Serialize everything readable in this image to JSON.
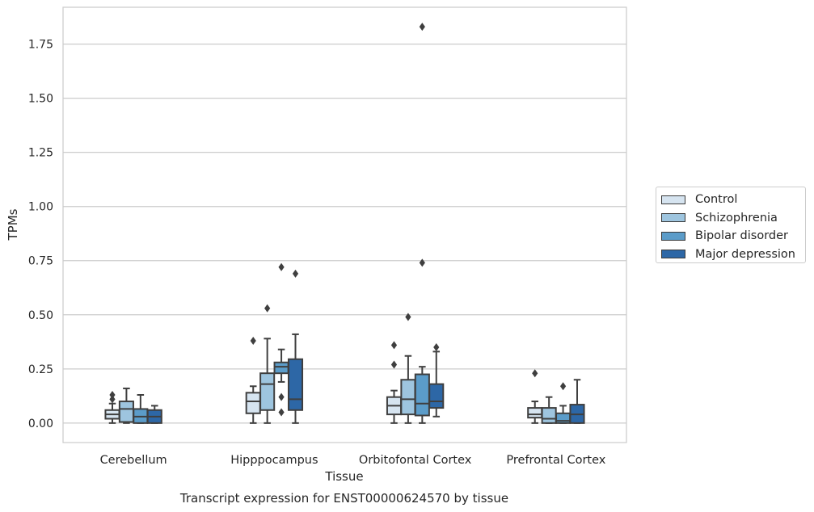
{
  "chart_data": {
    "type": "box",
    "ylabel": "TPMs",
    "xlabel": "Tissue",
    "caption": "Transcript expression for ENST00000624570 by tissue",
    "categories": [
      "Cerebellum",
      "Hipppocampus",
      "Orbitofontal Cortex",
      "Prefrontal Cortex"
    ],
    "yticks": [
      "0.00",
      "0.25",
      "0.50",
      "0.75",
      "1.00",
      "1.25",
      "1.50",
      "1.75"
    ],
    "ylim": [
      -0.09,
      1.92
    ],
    "grid": true,
    "legend_position": "right",
    "series": [
      {
        "name": "Control",
        "color": "#d6e4f0",
        "boxes": [
          {
            "q1": 0.02,
            "median": 0.04,
            "q3": 0.06,
            "whisker_low": 0.0,
            "whisker_high": 0.09,
            "outliers": [
              0.11,
              0.13
            ]
          },
          {
            "q1": 0.045,
            "median": 0.1,
            "q3": 0.14,
            "whisker_low": 0.0,
            "whisker_high": 0.17,
            "outliers": [
              0.38
            ]
          },
          {
            "q1": 0.04,
            "median": 0.08,
            "q3": 0.12,
            "whisker_low": 0.0,
            "whisker_high": 0.15,
            "outliers": [
              0.27,
              0.36
            ]
          },
          {
            "q1": 0.025,
            "median": 0.04,
            "q3": 0.07,
            "whisker_low": 0.0,
            "whisker_high": 0.1,
            "outliers": [
              0.23
            ]
          }
        ]
      },
      {
        "name": "Schizophrenia",
        "color": "#9ec5df",
        "boxes": [
          {
            "q1": 0.005,
            "median": 0.065,
            "q3": 0.1,
            "whisker_low": 0.0,
            "whisker_high": 0.16,
            "outliers": []
          },
          {
            "q1": 0.06,
            "median": 0.18,
            "q3": 0.23,
            "whisker_low": 0.0,
            "whisker_high": 0.39,
            "outliers": [
              0.53
            ]
          },
          {
            "q1": 0.04,
            "median": 0.11,
            "q3": 0.2,
            "whisker_low": 0.0,
            "whisker_high": 0.31,
            "outliers": [
              0.49
            ]
          },
          {
            "q1": 0.0,
            "median": 0.02,
            "q3": 0.07,
            "whisker_low": 0.0,
            "whisker_high": 0.12,
            "outliers": []
          }
        ]
      },
      {
        "name": "Bipolar disorder",
        "color": "#5b9cc9",
        "boxes": [
          {
            "q1": 0.0,
            "median": 0.03,
            "q3": 0.065,
            "whisker_low": 0.0,
            "whisker_high": 0.13,
            "outliers": []
          },
          {
            "q1": 0.23,
            "median": 0.26,
            "q3": 0.28,
            "whisker_low": 0.19,
            "whisker_high": 0.34,
            "outliers": [
              0.05,
              0.12,
              0.72
            ]
          },
          {
            "q1": 0.035,
            "median": 0.09,
            "q3": 0.225,
            "whisker_low": 0.0,
            "whisker_high": 0.26,
            "outliers": [
              0.74,
              1.83
            ]
          },
          {
            "q1": 0.0,
            "median": 0.01,
            "q3": 0.045,
            "whisker_low": 0.0,
            "whisker_high": 0.08,
            "outliers": [
              0.17
            ]
          }
        ]
      },
      {
        "name": "Major depression",
        "color": "#2d67a6",
        "boxes": [
          {
            "q1": 0.0,
            "median": 0.03,
            "q3": 0.06,
            "whisker_low": 0.0,
            "whisker_high": 0.08,
            "outliers": []
          },
          {
            "q1": 0.06,
            "median": 0.11,
            "q3": 0.295,
            "whisker_low": 0.0,
            "whisker_high": 0.41,
            "outliers": [
              0.69
            ]
          },
          {
            "q1": 0.07,
            "median": 0.1,
            "q3": 0.18,
            "whisker_low": 0.03,
            "whisker_high": 0.33,
            "outliers": [
              0.35
            ]
          },
          {
            "q1": 0.0,
            "median": 0.04,
            "q3": 0.085,
            "whisker_low": 0.0,
            "whisker_high": 0.2,
            "outliers": []
          }
        ]
      }
    ]
  }
}
